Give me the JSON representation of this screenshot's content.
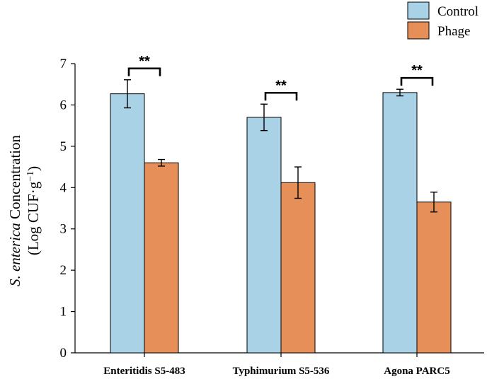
{
  "chart_data": {
    "type": "bar",
    "title": "",
    "categories": [
      "Enteritidis S5-483",
      "Typhimurium S5-536",
      "Agona PARC5"
    ],
    "series": [
      {
        "name": "Control",
        "color": "#a9d2e7",
        "values": [
          6.27,
          5.7,
          6.3
        ],
        "errors": [
          0.34,
          0.32,
          0.08
        ]
      },
      {
        "name": "Phage",
        "color": "#e68f58",
        "values": [
          4.6,
          4.12,
          3.65
        ],
        "errors": [
          0.08,
          0.38,
          0.24
        ]
      }
    ],
    "ylabel_italic": "S. enterica",
    "ylabel_rest": " Concentration",
    "ylabel_line2_pre": "(Log CUF·g",
    "ylabel_line2_sup": "−1",
    "ylabel_line2_post": ")",
    "xlabel": "",
    "ylim": [
      0,
      7
    ],
    "yticks": [
      "0",
      "1",
      "2",
      "3",
      "4",
      "5",
      "6",
      "7"
    ],
    "significance": [
      "**",
      "**",
      "**"
    ],
    "legend_position": "top-right",
    "grid": false
  }
}
